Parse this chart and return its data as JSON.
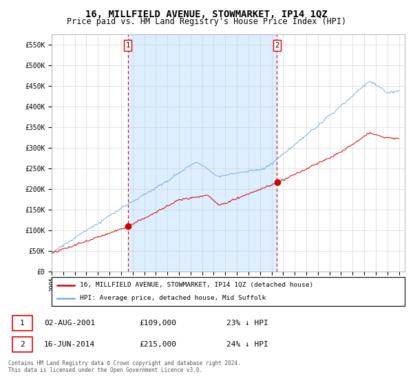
{
  "title": "16, MILLFIELD AVENUE, STOWMARKET, IP14 1QZ",
  "subtitle": "Price paid vs. HM Land Registry's House Price Index (HPI)",
  "title_fontsize": 10,
  "subtitle_fontsize": 8.5,
  "ylabel_ticks": [
    "£0",
    "£50K",
    "£100K",
    "£150K",
    "£200K",
    "£250K",
    "£300K",
    "£350K",
    "£400K",
    "£450K",
    "£500K",
    "£550K"
  ],
  "ytick_values": [
    0,
    50000,
    100000,
    150000,
    200000,
    250000,
    300000,
    350000,
    400000,
    450000,
    500000,
    550000
  ],
  "ylim": [
    0,
    575000
  ],
  "xlim_start": 1995.0,
  "xlim_end": 2025.5,
  "hpi_color": "#7aabdb",
  "price_color": "#cc0000",
  "vline_color": "#dd0000",
  "shade_color": "#ddeeff",
  "background_color": "#ffffff",
  "grid_color": "#cccccc",
  "legend_line1": "16, MILLFIELD AVENUE, STOWMARKET, IP14 1QZ (detached house)",
  "legend_line2": "HPI: Average price, detached house, Mid Suffolk",
  "t1_year": 2001.58,
  "t2_year": 2014.46,
  "t1_price": 109000,
  "t2_price": 215000,
  "transaction1": {
    "num": "1",
    "date": "02-AUG-2001",
    "price": "£109,000",
    "hpi": "23% ↓ HPI"
  },
  "transaction2": {
    "num": "2",
    "date": "16-JUN-2014",
    "price": "£215,000",
    "hpi": "24% ↓ HPI"
  },
  "footer": "Contains HM Land Registry data © Crown copyright and database right 2024.\nThis data is licensed under the Open Government Licence v3.0.",
  "xtick_years": [
    1995,
    1996,
    1997,
    1998,
    1999,
    2000,
    2001,
    2002,
    2003,
    2004,
    2005,
    2006,
    2007,
    2008,
    2009,
    2010,
    2011,
    2012,
    2013,
    2014,
    2015,
    2016,
    2017,
    2018,
    2019,
    2020,
    2021,
    2022,
    2023,
    2024,
    2025
  ]
}
